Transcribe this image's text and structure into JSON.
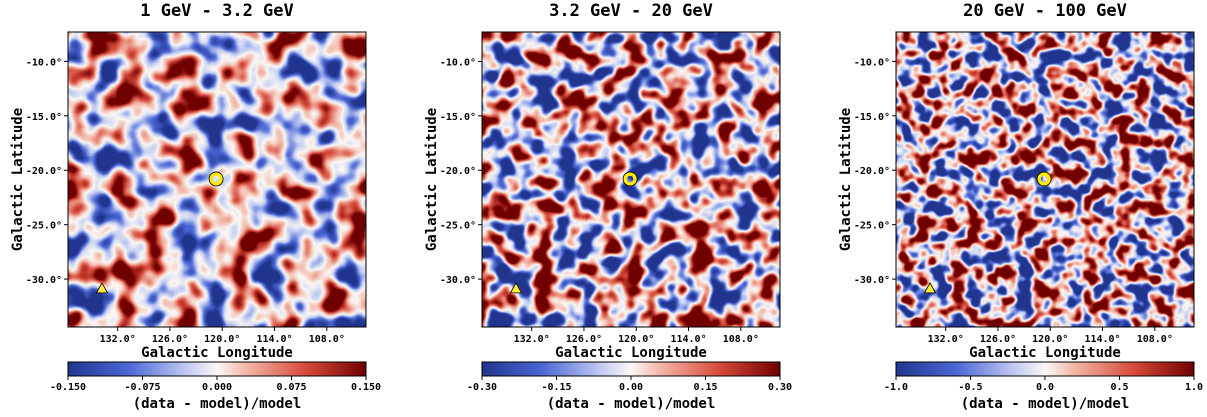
{
  "chart_data": [
    {
      "type": "heatmap",
      "title": "1 GeV - 3.2 GeV",
      "xlabel": "Galactic Longitude",
      "ylabel": "Galactic Latitude",
      "xlim": [
        137.7,
        103.5
      ],
      "ylim": [
        -34.4,
        -7.3
      ],
      "xticks": [
        {
          "value": 132,
          "label": "132.0°"
        },
        {
          "value": 126,
          "label": "126.0°"
        },
        {
          "value": 120,
          "label": "120.0°"
        },
        {
          "value": 114,
          "label": "114.0°"
        },
        {
          "value": 108,
          "label": "108.0°"
        }
      ],
      "yticks": [
        {
          "value": -10,
          "label": "-10.0°"
        },
        {
          "value": -15,
          "label": "-15.0°"
        },
        {
          "value": -20,
          "label": "-20.0°"
        },
        {
          "value": -25,
          "label": "-25.0°"
        },
        {
          "value": -30,
          "label": "-30.0°"
        }
      ],
      "points": [
        {
          "marker": "circle",
          "x": 120.7,
          "y": -20.8
        },
        {
          "marker": "triangle",
          "x": 133.8,
          "y": -30.9
        }
      ],
      "colorbar": {
        "label": "(data - model)/model",
        "lim": [
          -0.15,
          0.15
        ],
        "ticks": [
          {
            "value": -0.15,
            "label": "-0.150"
          },
          {
            "value": -0.075,
            "label": "-0.075"
          },
          {
            "value": 0,
            "label": "0.000"
          },
          {
            "value": 0.075,
            "label": "0.075"
          },
          {
            "value": 0.15,
            "label": "0.150"
          }
        ]
      }
    },
    {
      "type": "heatmap",
      "title": "3.2 GeV - 20 GeV",
      "xlabel": "Galactic Longitude",
      "ylabel": "Galactic Latitude",
      "xlim": [
        137.7,
        103.5
      ],
      "ylim": [
        -34.4,
        -7.3
      ],
      "xticks": [
        {
          "value": 132,
          "label": "132.0°"
        },
        {
          "value": 126,
          "label": "126.0°"
        },
        {
          "value": 120,
          "label": "120.0°"
        },
        {
          "value": 114,
          "label": "114.0°"
        },
        {
          "value": 108,
          "label": "108.0°"
        }
      ],
      "yticks": [
        {
          "value": -10,
          "label": "-10.0°"
        },
        {
          "value": -15,
          "label": "-15.0°"
        },
        {
          "value": -20,
          "label": "-20.0°"
        },
        {
          "value": -25,
          "label": "-25.0°"
        },
        {
          "value": -30,
          "label": "-30.0°"
        }
      ],
      "points": [
        {
          "marker": "circle",
          "x": 120.7,
          "y": -20.8
        },
        {
          "marker": "triangle",
          "x": 133.8,
          "y": -30.9
        }
      ],
      "colorbar": {
        "label": "(data - model)/model",
        "lim": [
          -0.3,
          0.3
        ],
        "ticks": [
          {
            "value": -0.3,
            "label": "-0.30"
          },
          {
            "value": -0.15,
            "label": "-0.15"
          },
          {
            "value": 0,
            "label": "0.00"
          },
          {
            "value": 0.15,
            "label": "0.15"
          },
          {
            "value": 0.3,
            "label": "0.30"
          }
        ]
      }
    },
    {
      "type": "heatmap",
      "title": "20 GeV - 100 GeV",
      "xlabel": "Galactic Longitude",
      "ylabel": "Galactic Latitude",
      "xlim": [
        137.7,
        103.5
      ],
      "ylim": [
        -34.4,
        -7.3
      ],
      "xticks": [
        {
          "value": 132,
          "label": "132.0°"
        },
        {
          "value": 126,
          "label": "126.0°"
        },
        {
          "value": 120,
          "label": "120.0°"
        },
        {
          "value": 114,
          "label": "114.0°"
        },
        {
          "value": 108,
          "label": "108.0°"
        }
      ],
      "yticks": [
        {
          "value": -10,
          "label": "-10.0°"
        },
        {
          "value": -15,
          "label": "-15.0°"
        },
        {
          "value": -20,
          "label": "-20.0°"
        },
        {
          "value": -25,
          "label": "-25.0°"
        },
        {
          "value": -30,
          "label": "-30.0°"
        }
      ],
      "points": [
        {
          "marker": "circle",
          "x": 120.7,
          "y": -20.8
        },
        {
          "marker": "triangle",
          "x": 133.8,
          "y": -30.9
        }
      ],
      "colorbar": {
        "label": "(data - model)/model",
        "lim": [
          -1.0,
          1.0
        ],
        "ticks": [
          {
            "value": -1.0,
            "label": "-1.0"
          },
          {
            "value": -0.5,
            "label": "-0.5"
          },
          {
            "value": 0,
            "label": "0.0"
          },
          {
            "value": 0.5,
            "label": "0.5"
          },
          {
            "value": 1.0,
            "label": "1.0"
          }
        ]
      }
    }
  ]
}
